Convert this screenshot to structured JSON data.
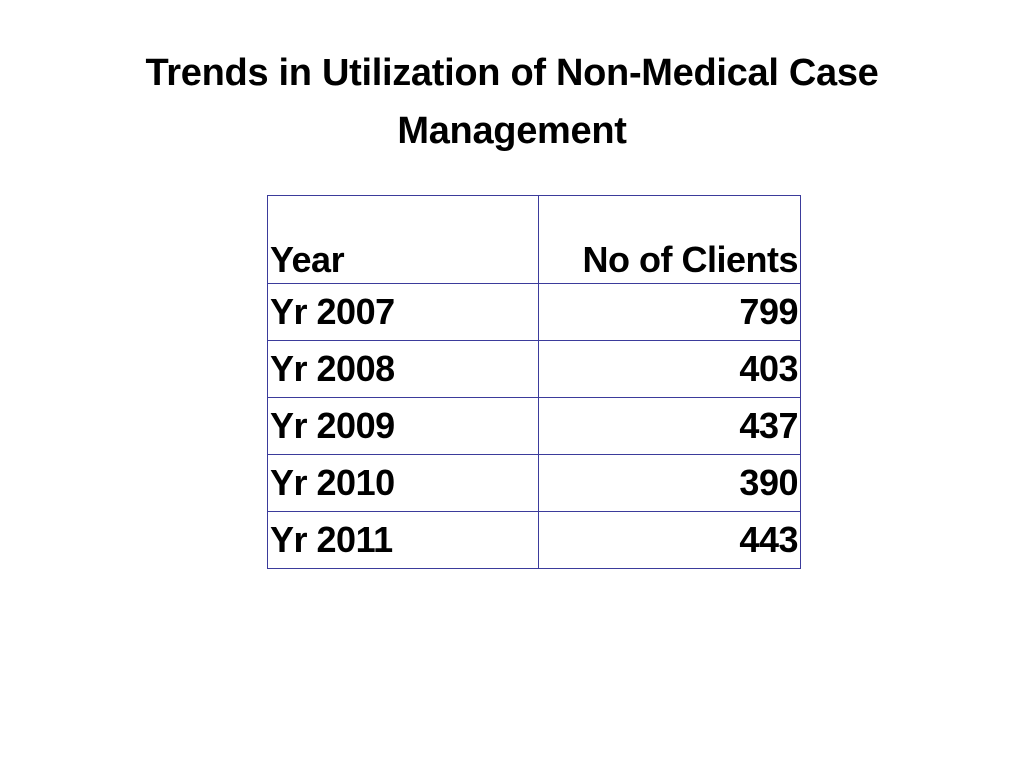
{
  "slide": {
    "title_line1": "Trends in Utilization of Non-Medical Case",
    "title_line2": "Management"
  },
  "table": {
    "headers": {
      "year": "Year",
      "clients": "No of Clients"
    },
    "rows": [
      {
        "year": "Yr 2007",
        "clients": "799"
      },
      {
        "year": "Yr 2008",
        "clients": "403"
      },
      {
        "year": "Yr 2009",
        "clients": "437"
      },
      {
        "year": "Yr 2010",
        "clients": "390"
      },
      {
        "year": "Yr 2011",
        "clients": "443"
      }
    ],
    "border_color": "#3b3b9b"
  }
}
